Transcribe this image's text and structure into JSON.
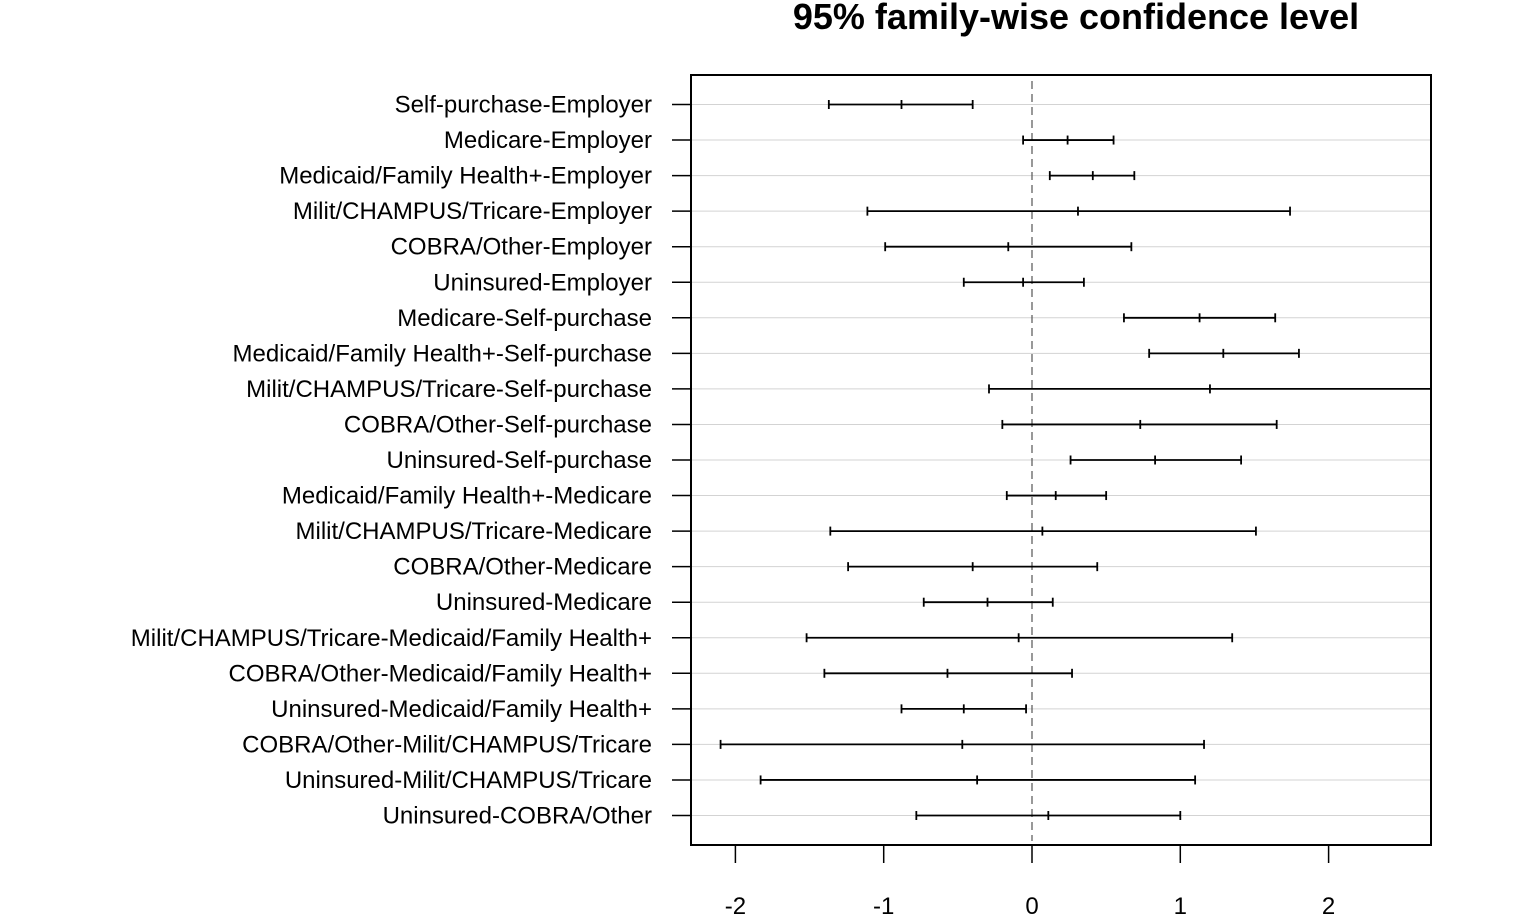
{
  "chart_data": {
    "type": "scatter",
    "subtype": "confidence-interval-plot",
    "title": "95% family-wise confidence level",
    "xlabel": "",
    "ylabel": "",
    "xlim": [
      -2.3,
      2.7
    ],
    "xticks": [
      -2,
      -1,
      0,
      1,
      2
    ],
    "xtick_labels": [
      "-2",
      "-1",
      "0",
      "1",
      "2"
    ],
    "reference_line": 0,
    "grid": "horizontal",
    "colors": {
      "interval": "#000000",
      "grid": "#d3d3d3",
      "reference": "#555555",
      "frame": "#000000"
    },
    "comparisons": [
      {
        "label": "Self-purchase-Employer",
        "lwr": -1.37,
        "diff": -0.88,
        "upr": -0.4
      },
      {
        "label": "Medicare-Employer",
        "lwr": -0.06,
        "diff": 0.24,
        "upr": 0.55
      },
      {
        "label": "Medicaid/Family Health+-Employer",
        "lwr": 0.12,
        "diff": 0.41,
        "upr": 0.69
      },
      {
        "label": "Milit/CHAMPUS/Tricare-Employer",
        "lwr": -1.11,
        "diff": 0.31,
        "upr": 1.74
      },
      {
        "label": "COBRA/Other-Employer",
        "lwr": -0.99,
        "diff": -0.16,
        "upr": 0.67
      },
      {
        "label": "Uninsured-Employer",
        "lwr": -0.46,
        "diff": -0.06,
        "upr": 0.35
      },
      {
        "label": "Medicare-Self-purchase",
        "lwr": 0.62,
        "diff": 1.13,
        "upr": 1.64
      },
      {
        "label": "Medicaid/Family Health+-Self-purchase",
        "lwr": 0.79,
        "diff": 1.29,
        "upr": 1.8
      },
      {
        "label": "Milit/CHAMPUS/Tricare-Self-purchase",
        "lwr": -0.29,
        "diff": 1.2,
        "upr": 2.69
      },
      {
        "label": "COBRA/Other-Self-purchase",
        "lwr": -0.2,
        "diff": 0.73,
        "upr": 1.65
      },
      {
        "label": "Uninsured-Self-purchase",
        "lwr": 0.26,
        "diff": 0.83,
        "upr": 1.41
      },
      {
        "label": "Medicaid/Family Health+-Medicare",
        "lwr": -0.17,
        "diff": 0.16,
        "upr": 0.5
      },
      {
        "label": "Milit/CHAMPUS/Tricare-Medicare",
        "lwr": -1.36,
        "diff": 0.07,
        "upr": 1.51
      },
      {
        "label": "COBRA/Other-Medicare",
        "lwr": -1.24,
        "diff": -0.4,
        "upr": 0.44
      },
      {
        "label": "Uninsured-Medicare",
        "lwr": -0.73,
        "diff": -0.3,
        "upr": 0.14
      },
      {
        "label": "Milit/CHAMPUS/Tricare-Medicaid/Family Health+",
        "lwr": -1.52,
        "diff": -0.09,
        "upr": 1.35
      },
      {
        "label": "COBRA/Other-Medicaid/Family Health+",
        "lwr": -1.4,
        "diff": -0.57,
        "upr": 0.27
      },
      {
        "label": "Uninsured-Medicaid/Family Health+",
        "lwr": -0.88,
        "diff": -0.46,
        "upr": -0.04
      },
      {
        "label": "COBRA/Other-Milit/CHAMPUS/Tricare",
        "lwr": -2.1,
        "diff": -0.47,
        "upr": 1.16
      },
      {
        "label": "Uninsured-Milit/CHAMPUS/Tricare",
        "lwr": -1.83,
        "diff": -0.37,
        "upr": 1.1
      },
      {
        "label": "Uninsured-COBRA/Other",
        "lwr": -0.78,
        "diff": 0.11,
        "upr": 1.0
      }
    ]
  }
}
